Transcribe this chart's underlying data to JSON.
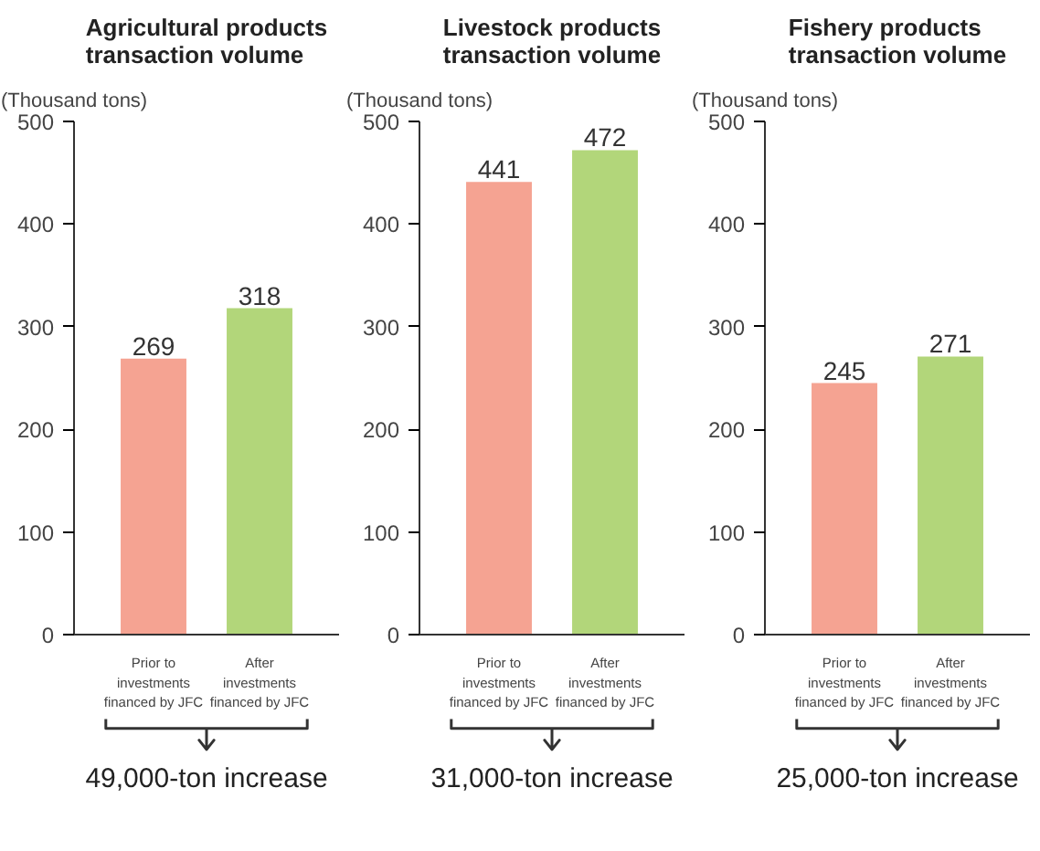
{
  "chart_data": [
    {
      "type": "bar",
      "title": "Agricultural products\ntransaction volume",
      "ylabel": "(Thousand tons)",
      "categories": [
        "Prior to\ninvestments\nfinanced by JFC",
        "After\ninvestments\nfinanced by JFC"
      ],
      "values": [
        269,
        318
      ],
      "colors": [
        "#f5a392",
        "#b2d67a"
      ],
      "ylim": [
        0,
        500
      ],
      "yticks": [
        0,
        100,
        200,
        300,
        400,
        500
      ],
      "data_labels": true,
      "grid": false,
      "annotations": [
        "49,000-ton increase"
      ]
    },
    {
      "type": "bar",
      "title": "Livestock products\ntransaction volume",
      "ylabel": "(Thousand tons)",
      "categories": [
        "Prior to\ninvestments\nfinanced by JFC",
        "After\ninvestments\nfinanced by JFC"
      ],
      "values": [
        441,
        472
      ],
      "colors": [
        "#f5a392",
        "#b2d67a"
      ],
      "ylim": [
        0,
        500
      ],
      "yticks": [
        0,
        100,
        200,
        300,
        400,
        500
      ],
      "data_labels": true,
      "grid": false,
      "annotations": [
        "31,000-ton increase"
      ]
    },
    {
      "type": "bar",
      "title": "Fishery products\ntransaction volume",
      "ylabel": "(Thousand tons)",
      "categories": [
        "Prior to\ninvestments\nfinanced by JFC",
        "After\ninvestments\nfinanced by JFC"
      ],
      "values": [
        245,
        271
      ],
      "colors": [
        "#f5a392",
        "#b2d67a"
      ],
      "ylim": [
        0,
        500
      ],
      "yticks": [
        0,
        100,
        200,
        300,
        400,
        500
      ],
      "data_labels": true,
      "grid": false,
      "annotations": [
        "25,000-ton increase"
      ]
    }
  ]
}
